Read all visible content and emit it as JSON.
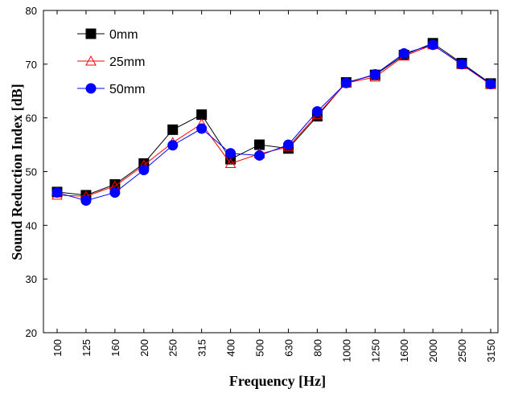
{
  "chart_data": {
    "type": "line",
    "xlabel": "Frequency [Hz]",
    "ylabel": "Sound Reduction Index [dB]",
    "ylim": [
      20,
      80
    ],
    "yticks": [
      20,
      30,
      40,
      50,
      60,
      70,
      80
    ],
    "grid": false,
    "legend_position": "top-left",
    "categories": [
      "100",
      "125",
      "160",
      "200",
      "250",
      "315",
      "400",
      "500",
      "630",
      "800",
      "1000",
      "1250",
      "1600",
      "2000",
      "2500",
      "3150"
    ],
    "series": [
      {
        "name": "0mm",
        "color": "#000000",
        "marker": "square-filled",
        "values": [
          46.2,
          45.6,
          47.6,
          51.5,
          57.8,
          60.6,
          52.3,
          55.0,
          54.3,
          60.3,
          66.6,
          68.0,
          71.7,
          73.9,
          70.2,
          66.4
        ]
      },
      {
        "name": "25mm",
        "color": "#ff0000",
        "marker": "triangle-open",
        "values": [
          45.6,
          45.4,
          47.3,
          51.2,
          55.4,
          58.9,
          51.5,
          53.3,
          54.6,
          60.6,
          66.5,
          67.6,
          71.5,
          73.6,
          69.9,
          66.2
        ]
      },
      {
        "name": "50mm",
        "color": "#0000ff",
        "marker": "circle-filled",
        "values": [
          46.1,
          44.6,
          46.1,
          50.3,
          54.9,
          58.0,
          53.4,
          53.0,
          55.0,
          61.2,
          66.5,
          68.1,
          72.0,
          73.6,
          70.0,
          66.3
        ]
      }
    ]
  }
}
